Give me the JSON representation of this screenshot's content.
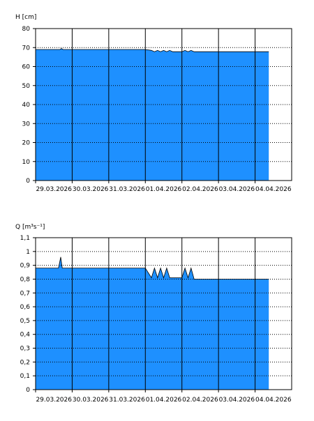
{
  "chart_data": [
    {
      "type": "area",
      "ylabel": "H [cm]",
      "ylim": [
        0,
        80
      ],
      "yticks": [
        0,
        10,
        20,
        30,
        40,
        50,
        60,
        70,
        80
      ],
      "ytick_labels": [
        "0",
        "10",
        "20",
        "30",
        "40",
        "50",
        "60",
        "70",
        "80"
      ],
      "xlim": [
        "2026-03-29",
        "2026-04-05"
      ],
      "xtick_labels": [
        "29.03.2026",
        "30.03.2026",
        "31.03.2026",
        "01.04.2026",
        "02.04.2026",
        "03.04.2026",
        "04.04.2026"
      ],
      "grid": true,
      "fill_color": "#1E90FF",
      "series": [
        {
          "x": [
            "2026-03-29 00:00",
            "2026-03-29 16:00",
            "2026-03-29 17:00",
            "2026-03-29 18:00",
            "2026-03-30 00:00",
            "2026-03-31 00:00",
            "2026-04-01 00:00",
            "2026-04-01 04:00",
            "2026-04-01 06:00",
            "2026-04-01 08:00",
            "2026-04-01 10:00",
            "2026-04-01 12:00",
            "2026-04-01 14:00",
            "2026-04-01 16:00",
            "2026-04-01 18:00",
            "2026-04-01 21:00",
            "2026-04-02 00:00",
            "2026-04-02 02:00",
            "2026-04-02 04:00",
            "2026-04-02 06:00",
            "2026-04-02 08:00",
            "2026-04-02 12:00",
            "2026-04-03 00:00",
            "2026-04-04 00:00",
            "2026-04-04 09:00"
          ],
          "values": [
            69,
            69,
            69.5,
            69,
            69,
            69,
            69,
            68.5,
            67.8,
            68.5,
            67.8,
            68.5,
            67.8,
            68.5,
            67.8,
            67.8,
            67.8,
            68.5,
            67.8,
            68.5,
            67.8,
            67.8,
            67.8,
            67.8,
            67.8
          ]
        }
      ]
    },
    {
      "type": "area",
      "ylabel": "Q [m³s⁻¹]",
      "ylim": [
        0,
        1.1
      ],
      "yticks": [
        0,
        0.1,
        0.2,
        0.3,
        0.4,
        0.5,
        0.6,
        0.7,
        0.8,
        0.9,
        1.0,
        1.1
      ],
      "ytick_labels": [
        "0",
        "0,1",
        "0,2",
        "0,3",
        "0,4",
        "0,5",
        "0,6",
        "0,7",
        "0,8",
        "0,9",
        "1",
        "1,1"
      ],
      "xlim": [
        "2026-03-29",
        "2026-04-05"
      ],
      "xtick_labels": [
        "29.03.2026",
        "30.03.2026",
        "31.03.2026",
        "01.04.2026",
        "02.04.2026",
        "03.04.2026",
        "04.04.2026"
      ],
      "grid": true,
      "fill_color": "#1E90FF",
      "series": [
        {
          "x": [
            "2026-03-29 00:00",
            "2026-03-29 15:00",
            "2026-03-29 16:30",
            "2026-03-29 17:30",
            "2026-03-29 18:00",
            "2026-03-30 00:00",
            "2026-03-31 00:00",
            "2026-04-01 00:00",
            "2026-04-01 04:00",
            "2026-04-01 06:00",
            "2026-04-01 08:00",
            "2026-04-01 10:00",
            "2026-04-01 12:00",
            "2026-04-01 14:00",
            "2026-04-01 16:00",
            "2026-04-01 18:00",
            "2026-04-01 21:00",
            "2026-04-02 00:00",
            "2026-04-02 02:00",
            "2026-04-02 04:00",
            "2026-04-02 06:00",
            "2026-04-02 08:00",
            "2026-04-02 12:00",
            "2026-04-03 00:00",
            "2026-04-04 00:00",
            "2026-04-04 09:00"
          ],
          "values": [
            0.88,
            0.88,
            0.96,
            0.88,
            0.88,
            0.88,
            0.88,
            0.88,
            0.81,
            0.88,
            0.81,
            0.88,
            0.81,
            0.88,
            0.81,
            0.81,
            0.81,
            0.81,
            0.88,
            0.81,
            0.88,
            0.8,
            0.8,
            0.8,
            0.8,
            0.8
          ]
        }
      ]
    }
  ]
}
